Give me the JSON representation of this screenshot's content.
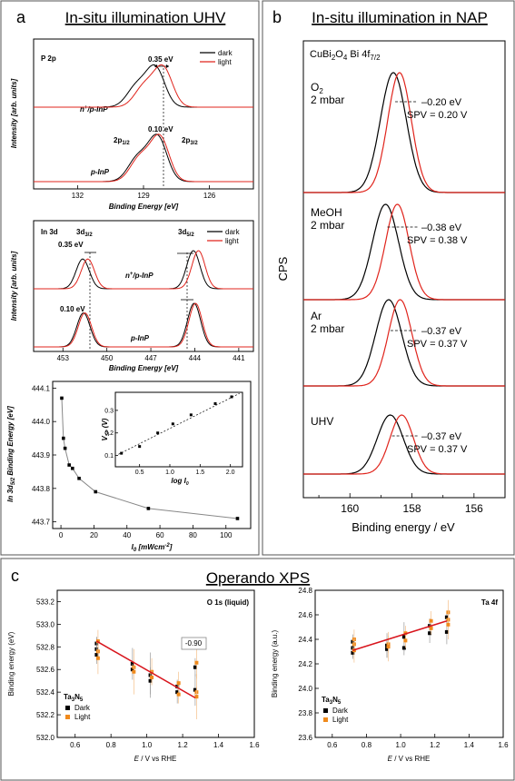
{
  "panel_a": {
    "letter": "a",
    "title": "In-situ illumination UHV",
    "chart1": {
      "label": "P 2p",
      "legend": [
        "dark",
        "light"
      ],
      "shift_top": "0.35 eV",
      "shift_bottom": "0.10 eV",
      "peak_a": "2p",
      "peak_a_sub": "1/2",
      "peak_b": "2p",
      "peak_b_sub": "3/2",
      "sample_top": "n",
      "sample_top_sup": "+",
      "sample_top_rest": "/p-InP",
      "sample_bottom": "p-InP",
      "ylabel": "Intensity [arb. units]",
      "xlabel": "Binding Energy [eV]",
      "ticks": [
        "132",
        "129",
        "126"
      ]
    },
    "chart2": {
      "label": "In 3d",
      "peak_a": "3d",
      "peak_a_sub": "3/2",
      "peak_b": "3d",
      "peak_b_sub": "5/2",
      "legend": [
        "dark",
        "light"
      ],
      "shift_top": "0.35 eV",
      "shift_bottom": "0.10 eV",
      "sample_top": "n",
      "sample_top_sup": "+",
      "sample_top_rest": "/p-InP",
      "sample_bottom": "p-InP",
      "ylabel": "Intensity [arb. units]",
      "xlabel": "Binding Energy [eV]",
      "ticks": [
        "453",
        "450",
        "447",
        "444",
        "441"
      ]
    },
    "chart3": {
      "ylabel_main": "In 3d",
      "ylabel_sub": "5/2",
      "ylabel_rest": " Binding Energy [eV]",
      "xlabel_main": "I",
      "xlabel_sub": "0",
      "xlabel_rest": " [mWcm",
      "xlabel_sup": "-2",
      "xlabel_end": "]",
      "yticks": [
        "444.1",
        "444.0",
        "443.9",
        "443.8",
        "443.7"
      ],
      "xticks": [
        "0",
        "20",
        "40",
        "60",
        "80",
        "100"
      ],
      "inset_ylabel_main": "V",
      "inset_ylabel_sub": "SP",
      "inset_ylabel_rest": " (V)",
      "inset_xlabel_main": "log I",
      "inset_xlabel_sub": "0",
      "inset_yticks": [
        "0.3",
        "0.2",
        "0.1"
      ],
      "inset_xticks": [
        "0.5",
        "1.0",
        "1.5",
        "2.0"
      ]
    }
  },
  "panel_b": {
    "letter": "b",
    "title": "In-situ illumination in NAP",
    "header_main": "CuBi",
    "header_sub1": "2",
    "header_mid": "O",
    "header_sub2": "4",
    "header_rest": " Bi 4f",
    "header_sub3": "7/2",
    "ylabel": "CPS",
    "xlabel": "Binding energy / eV",
    "ticks": [
      "160",
      "158",
      "156"
    ],
    "spectra": [
      {
        "gas": "O",
        "gas_sub": "2",
        "pressure": "2 mbar",
        "shift": "–0.20 eV",
        "spv": "SPV = 0.20 V"
      },
      {
        "gas": "MeOH",
        "gas_sub": "",
        "pressure": "2 mbar",
        "shift": "–0.38 eV",
        "spv": "SPV = 0.38 V"
      },
      {
        "gas": "Ar",
        "gas_sub": "",
        "pressure": "2 mbar",
        "shift": "–0.37 eV",
        "spv": "SPV = 0.37 V"
      },
      {
        "gas": "UHV",
        "gas_sub": "",
        "pressure": "",
        "shift": "–0.37 eV",
        "spv": "SPV = 0.37 V"
      }
    ]
  },
  "panel_c": {
    "letter": "c",
    "title": "Operando XPS",
    "left": {
      "label": "O 1s (liquid)",
      "slope": "-0.90",
      "sample_main": "Ta",
      "sample_sub1": "3",
      "sample_mid": "N",
      "sample_sub2": "5",
      "legend": [
        "Dark",
        "Light"
      ],
      "ylabel": "Binding energy (eV)",
      "xlabel_italic": "E",
      "xlabel_rest": " / V vs RHE",
      "yticks": [
        "533.2",
        "533.0",
        "532.8",
        "532.6",
        "532.4",
        "532.2",
        "532.0"
      ],
      "xticks": [
        "0.6",
        "0.8",
        "1.0",
        "1.2",
        "1.4",
        "1.6"
      ]
    },
    "right": {
      "label": "Ta 4f",
      "sample_main": "Ta",
      "sample_sub1": "3",
      "sample_mid": "N",
      "sample_sub2": "5",
      "legend": [
        "Dark",
        "Light"
      ],
      "ylabel": "Binding energy (a.u.)",
      "xlabel_italic": "E",
      "xlabel_rest": " / V vs RHE",
      "yticks": [
        "24.8",
        "24.6",
        "24.4",
        "24.2",
        "24.0",
        "23.8",
        "23.6"
      ],
      "xticks": [
        "0.6",
        "0.8",
        "1.0",
        "1.2",
        "1.4",
        "1.6"
      ]
    }
  },
  "colors": {
    "dark": "#000000",
    "light": "#e0241c",
    "orange": "#f08a1c",
    "fit": "#d8141c",
    "border": "#555555"
  },
  "chart_data": [
    {
      "type": "line",
      "title": "P 2p",
      "xlabel": "Binding Energy [eV]",
      "ylabel": "Intensity [arb. units]",
      "xlim": [
        134,
        124
      ],
      "series": [
        {
          "name": "dark",
          "sample": "n+/p-InP",
          "peaks": [
            129.3,
            128.45
          ]
        },
        {
          "name": "light",
          "sample": "n+/p-InP",
          "peaks": [
            128.95,
            128.1
          ]
        },
        {
          "name": "dark",
          "sample": "p-InP",
          "peaks": [
            129.25,
            128.35
          ]
        },
        {
          "name": "light",
          "sample": "p-InP",
          "peaks": [
            129.15,
            128.25
          ]
        }
      ]
    },
    {
      "type": "line",
      "title": "In 3d",
      "xlabel": "Binding Energy [eV]",
      "ylabel": "Intensity [arb. units]",
      "xlim": [
        455,
        440
      ],
      "series": [
        {
          "name": "dark",
          "sample": "n+/p-InP",
          "peaks": [
            451.65,
            444.1
          ]
        },
        {
          "name": "light",
          "sample": "n+/p-InP",
          "peaks": [
            451.3,
            443.75
          ]
        },
        {
          "name": "dark",
          "sample": "p-InP",
          "peaks": [
            451.6,
            444.05
          ]
        },
        {
          "name": "light",
          "sample": "p-InP",
          "peaks": [
            451.5,
            443.95
          ]
        }
      ]
    },
    {
      "type": "line",
      "xlabel": "I0 [mWcm-2]",
      "ylabel": "In 3d5/2 Binding Energy [eV]",
      "xlim": [
        -5,
        115
      ],
      "ylim": [
        443.68,
        444.12
      ],
      "x": [
        0.5,
        1.5,
        2.5,
        5,
        7,
        11,
        21,
        53,
        107
      ],
      "y": [
        444.07,
        443.95,
        443.92,
        443.87,
        443.86,
        443.83,
        443.79,
        443.74,
        443.71
      ]
    },
    {
      "type": "scatter",
      "xlabel": "log I0",
      "ylabel": "VSP (V)",
      "xlim": [
        0.1,
        2.2
      ],
      "ylim": [
        0.05,
        0.38
      ],
      "x": [
        0.2,
        0.5,
        0.8,
        1.05,
        1.35,
        1.75,
        2.02
      ],
      "y": [
        0.11,
        0.14,
        0.2,
        0.24,
        0.28,
        0.33,
        0.36
      ]
    },
    {
      "type": "line",
      "title": "CuBi2O4 Bi 4f7/2",
      "xlabel": "Binding energy / eV",
      "ylabel": "CPS",
      "xlim": [
        161.5,
        155
      ],
      "series": [
        {
          "name": "O2 2 mbar dark",
          "peak": 158.6
        },
        {
          "name": "O2 2 mbar light",
          "peak": 158.4
        },
        {
          "name": "MeOH 2 mbar dark",
          "peak": 158.85
        },
        {
          "name": "MeOH 2 mbar light",
          "peak": 158.47
        },
        {
          "name": "Ar 2 mbar dark",
          "peak": 158.75
        },
        {
          "name": "Ar 2 mbar light",
          "peak": 158.38
        },
        {
          "name": "UHV dark",
          "peak": 158.7
        },
        {
          "name": "UHV light",
          "peak": 158.33
        }
      ]
    },
    {
      "type": "scatter",
      "title": "O 1s (liquid)",
      "xlabel": "E / V vs RHE",
      "ylabel": "Binding energy (eV)",
      "xlim": [
        0.5,
        1.6
      ],
      "ylim": [
        532.0,
        533.3
      ],
      "series": [
        {
          "name": "Dark",
          "x": [
            0.72,
            0.72,
            0.72,
            0.92,
            0.92,
            1.02,
            1.02,
            1.17,
            1.17,
            1.27,
            1.27
          ],
          "y": [
            532.83,
            532.78,
            532.73,
            532.65,
            532.6,
            532.55,
            532.5,
            532.45,
            532.4,
            532.62,
            532.42
          ]
        },
        {
          "name": "Light",
          "x": [
            0.72,
            0.72,
            0.72,
            0.92,
            0.92,
            1.02,
            1.02,
            1.17,
            1.17,
            1.27,
            1.27,
            1.27
          ],
          "y": [
            532.85,
            532.76,
            532.7,
            532.62,
            532.58,
            532.58,
            532.53,
            532.48,
            532.38,
            532.66,
            532.4,
            532.36
          ]
        }
      ],
      "fit": {
        "x": [
          0.72,
          1.27
        ],
        "y": [
          532.85,
          532.35
        ]
      }
    },
    {
      "type": "scatter",
      "title": "Ta 4f",
      "xlabel": "E / V vs RHE",
      "ylabel": "Binding energy (a.u.)",
      "xlim": [
        0.5,
        1.6
      ],
      "ylim": [
        23.6,
        24.8
      ],
      "series": [
        {
          "name": "Dark",
          "x": [
            0.72,
            0.72,
            0.72,
            0.92,
            0.92,
            1.02,
            1.02,
            1.17,
            1.17,
            1.27,
            1.27
          ],
          "y": [
            24.38,
            24.33,
            24.29,
            24.35,
            24.32,
            24.42,
            24.33,
            24.51,
            24.45,
            24.58,
            24.46
          ]
        },
        {
          "name": "Light",
          "x": [
            0.72,
            0.72,
            0.72,
            0.92,
            0.92,
            1.02,
            1.02,
            1.17,
            1.17,
            1.27,
            1.27,
            1.27
          ],
          "y": [
            24.4,
            24.36,
            24.31,
            24.36,
            24.34,
            24.45,
            24.39,
            24.55,
            24.49,
            24.62,
            24.56,
            24.52
          ]
        }
      ],
      "fit": {
        "x": [
          0.72,
          1.27
        ],
        "y": [
          24.31,
          24.55
        ]
      }
    }
  ]
}
